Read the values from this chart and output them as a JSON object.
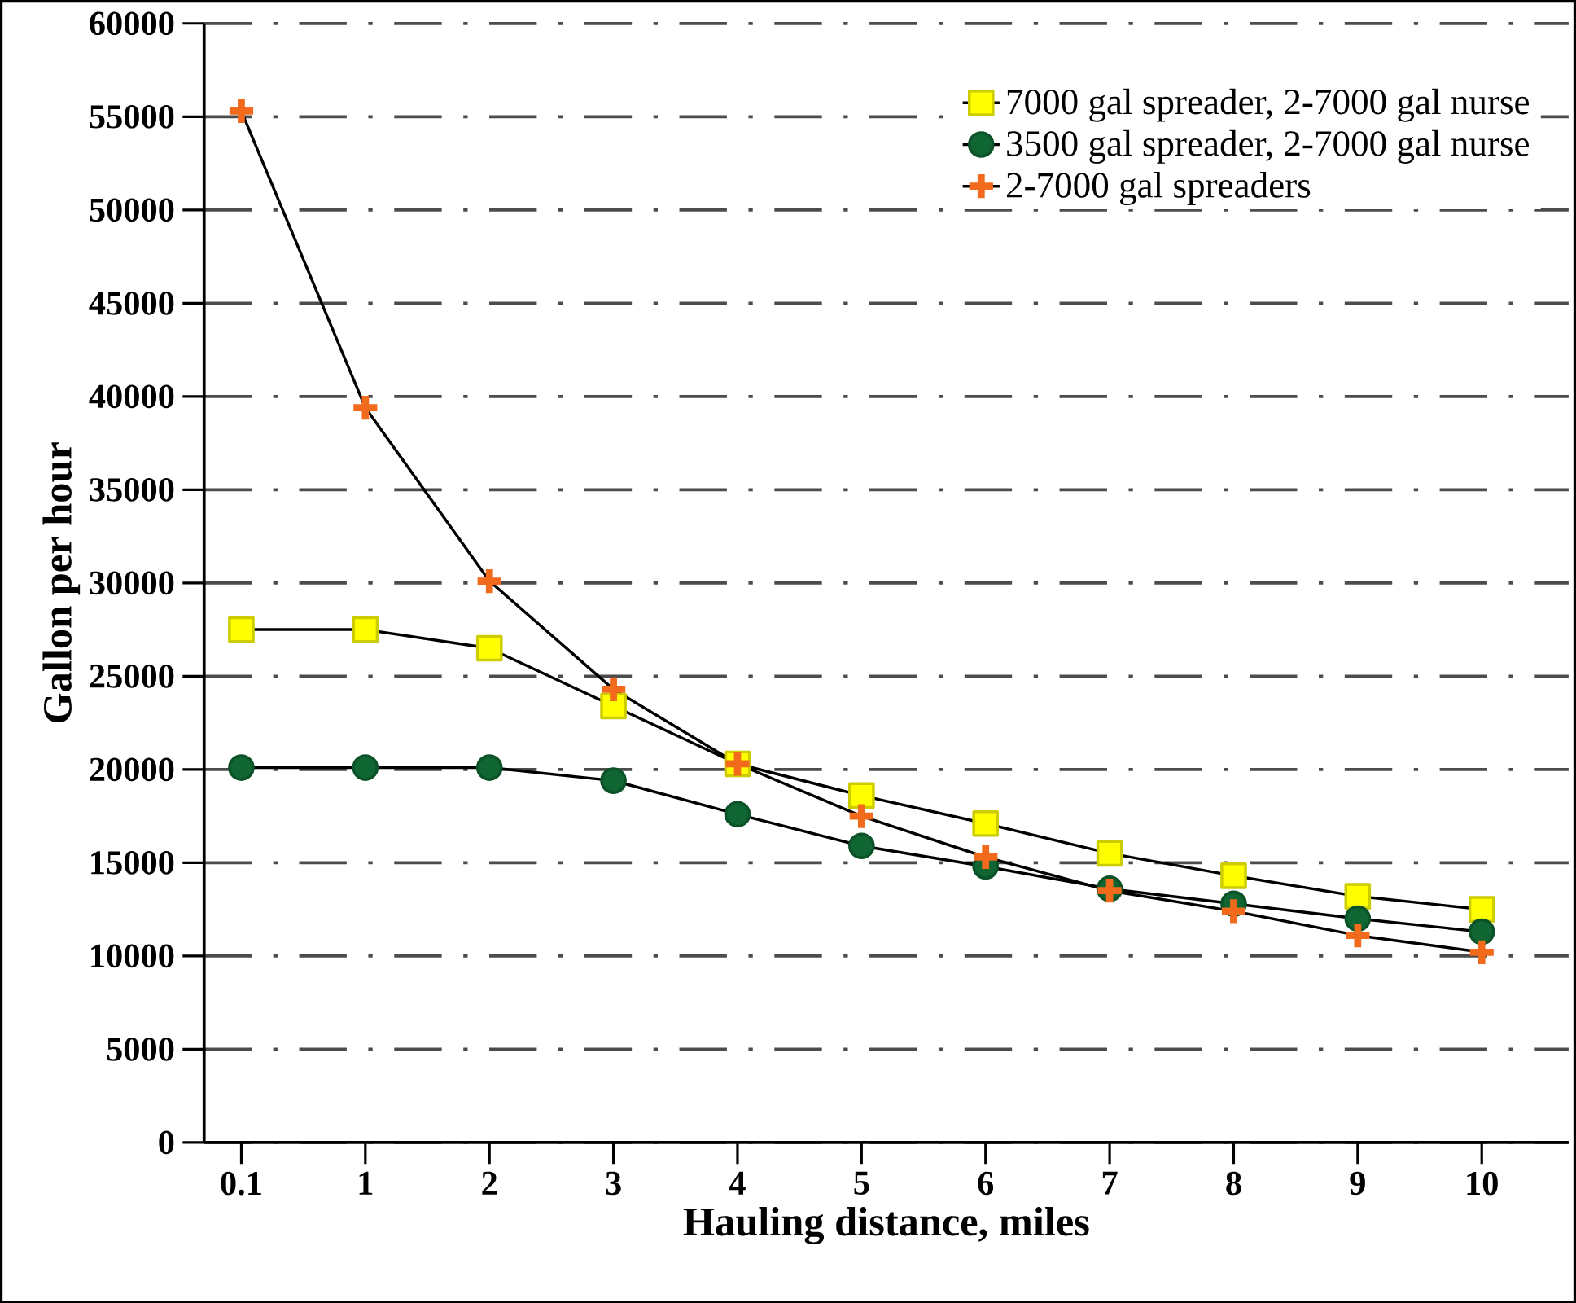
{
  "chart_data": {
    "type": "line",
    "xlabel": "Hauling distance, miles",
    "ylabel": "Gallon per hour",
    "categories": [
      "0.1",
      "1",
      "2",
      "3",
      "4",
      "5",
      "6",
      "7",
      "8",
      "9",
      "10"
    ],
    "series": [
      {
        "name": "7000 gal spreader, 2-7000 gal nurse",
        "color": "#ffff00",
        "marker": "square",
        "values": [
          27500,
          27500,
          26500,
          23400,
          20300,
          18600,
          17100,
          15500,
          14300,
          13200,
          12500
        ]
      },
      {
        "name": "3500 gal spreader, 2-7000 gal nurse",
        "color": "#0f6632",
        "marker": "circle",
        "values": [
          20100,
          20100,
          20100,
          19400,
          17600,
          15900,
          14800,
          13600,
          12800,
          12000,
          11300
        ]
      },
      {
        "name": "2-7000 gal spreaders",
        "color": "#f26a1b",
        "marker": "cross",
        "values": [
          55300,
          39400,
          30100,
          24300,
          20300,
          17500,
          15300,
          13500,
          12400,
          11100,
          10200
        ]
      }
    ],
    "ylim": [
      0,
      60000
    ],
    "yticks": [
      0,
      5000,
      10000,
      15000,
      20000,
      25000,
      30000,
      35000,
      40000,
      45000,
      50000,
      55000,
      60000
    ],
    "grid": "y",
    "legend": "top right",
    "line_style": "solid"
  }
}
